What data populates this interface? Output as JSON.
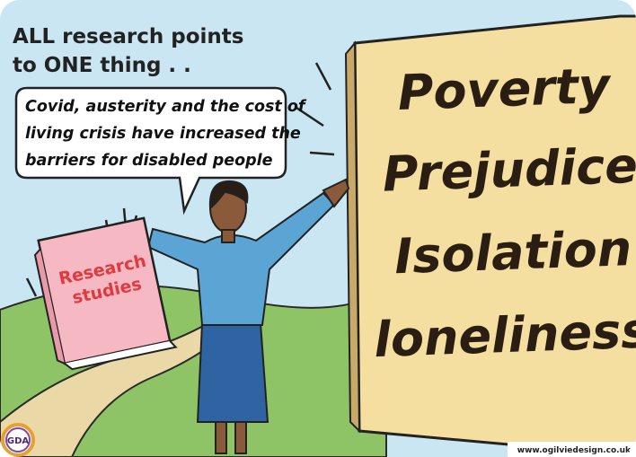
{
  "heading": [
    "ALL research points",
    "to ONE thing . ."
  ],
  "speech_bubble": [
    "Covid, austerity and the cost of",
    "living crisis have increased the",
    "barriers for disabled people"
  ],
  "book": [
    "Research",
    "studies"
  ],
  "sign": [
    "Poverty",
    "Prejudice",
    "Isolation",
    "loneliness"
  ],
  "logo": "GDA",
  "credit": "www.ogilviedesign.co.uk"
}
